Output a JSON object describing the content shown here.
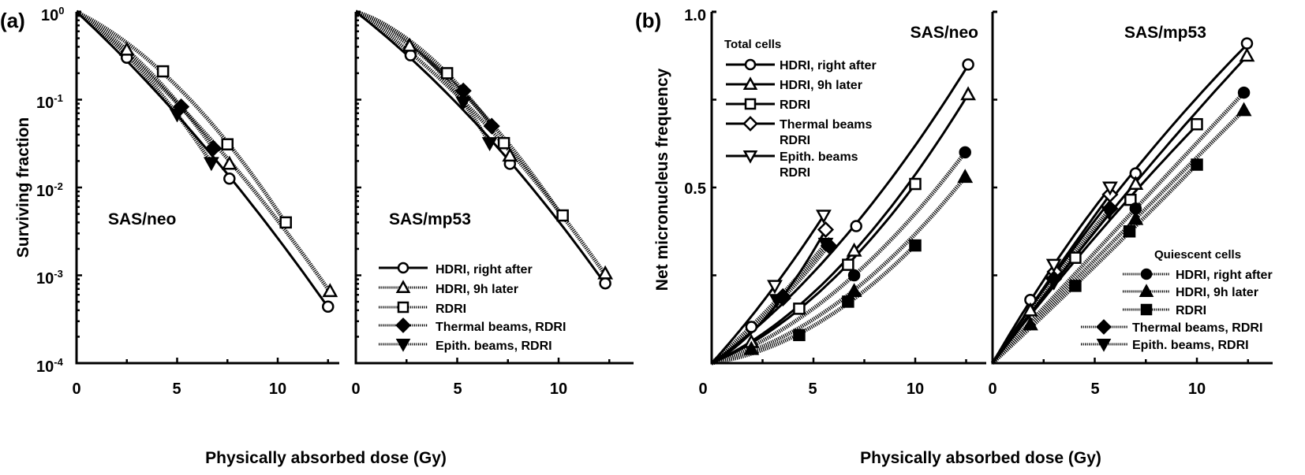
{
  "panel_labels": {
    "a": "(a)",
    "b": "(b)"
  },
  "axis_titles": {
    "a_y": "Surviving fraction",
    "b_y": "Net micronucleus frequency",
    "a_x": "Physically absorbed dose (Gy)",
    "b_x": "Physically absorbed dose (Gy)"
  },
  "tick_labels": {
    "a_y": [
      "10",
      "10",
      "10",
      "10",
      "10"
    ],
    "a_y_exp": [
      "0",
      "-1",
      "-2",
      "-3",
      "-4"
    ],
    "b_y": [
      "1.0",
      "0.5"
    ],
    "x": [
      "0",
      "5",
      "10"
    ]
  },
  "legend_a": {
    "items": [
      "HDRI, right after",
      "HDRI, 9h later",
      "RDRI",
      "Thermal beams, RDRI",
      "Epith. beams, RDRI"
    ]
  },
  "legend_b_total": {
    "title": "Total cells",
    "items": [
      "HDRI, right after",
      "HDRI, 9h later",
      "RDRI",
      "Thermal beams",
      "Epith. beams"
    ],
    "items_line2": [
      "",
      "",
      "",
      "RDRI",
      "RDRI"
    ]
  },
  "legend_b_quiescent": {
    "title": "Quiescent cells",
    "items": [
      "HDRI, right after",
      "HDRI, 9h later",
      "RDRI",
      "Thermal beams, RDRI",
      "Epith. beams, RDRI"
    ]
  },
  "colors": {
    "ink": "#000000",
    "background": "#ffffff"
  },
  "chart_data": [
    {
      "type": "scatter",
      "panel": "a",
      "title": "SAS/neo",
      "xlabel": "Physically absorbed dose (Gy)",
      "ylabel": "Surviving fraction",
      "yscale": "log",
      "ylim": [
        0.0001,
        1
      ],
      "xlim": [
        0,
        13
      ],
      "grid": false,
      "series": [
        {
          "name": "HDRI, right after",
          "marker": "circle",
          "filled": false,
          "line": "solid",
          "points": [
            [
              2.5,
              0.3
            ],
            [
              7.6,
              0.0126
            ],
            [
              12.5,
              0.00044
            ]
          ]
        },
        {
          "name": "HDRI, 9h later",
          "marker": "triangle",
          "filled": false,
          "line": "dotted",
          "points": [
            [
              2.5,
              0.37
            ],
            [
              7.6,
              0.0186
            ],
            [
              12.6,
              0.00066
            ]
          ]
        },
        {
          "name": "RDRI",
          "marker": "square",
          "filled": false,
          "line": "dotted",
          "points": [
            [
              4.3,
              0.21
            ],
            [
              7.5,
              0.031
            ],
            [
              10.4,
              0.004
            ]
          ]
        },
        {
          "name": "Thermal beams, RDRI",
          "marker": "diamond",
          "filled": true,
          "line": "dotted",
          "points": [
            [
              5.2,
              0.083
            ],
            [
              6.8,
              0.028
            ]
          ]
        },
        {
          "name": "Epith. beams, RDRI",
          "marker": "invtriangle",
          "filled": true,
          "line": "dotted",
          "points": [
            [
              5.0,
              0.068
            ],
            [
              6.7,
              0.019
            ]
          ]
        }
      ]
    },
    {
      "type": "scatter",
      "panel": "a",
      "title": "SAS/mp53",
      "yscale": "log",
      "ylim": [
        0.0001,
        1
      ],
      "xlim": [
        0,
        13
      ],
      "grid": false,
      "series": [
        {
          "name": "HDRI, right after",
          "marker": "circle",
          "filled": false,
          "line": "solid",
          "points": [
            [
              2.7,
              0.32
            ],
            [
              7.6,
              0.0186
            ],
            [
              12.3,
              0.00081
            ]
          ]
        },
        {
          "name": "HDRI, 9h later",
          "marker": "triangle",
          "filled": false,
          "line": "dotted",
          "points": [
            [
              2.65,
              0.41
            ],
            [
              7.6,
              0.023
            ],
            [
              12.3,
              0.00105
            ]
          ]
        },
        {
          "name": "RDRI",
          "marker": "square",
          "filled": false,
          "line": "dotted",
          "points": [
            [
              4.5,
              0.2
            ],
            [
              7.3,
              0.032
            ],
            [
              10.2,
              0.0048
            ]
          ]
        },
        {
          "name": "Thermal beams, RDRI",
          "marker": "diamond",
          "filled": true,
          "line": "dotted",
          "points": [
            [
              5.3,
              0.126
            ],
            [
              6.7,
              0.05
            ]
          ]
        },
        {
          "name": "Epith. beams, RDRI",
          "marker": "invtriangle",
          "filled": true,
          "line": "dotted",
          "points": [
            [
              5.3,
              0.093
            ],
            [
              6.6,
              0.032
            ]
          ]
        }
      ]
    },
    {
      "type": "scatter",
      "panel": "b",
      "title": "SAS/neo",
      "xlabel": "Physically absorbed dose (Gy)",
      "ylabel": "Net micronucleus frequency",
      "yscale": "linear",
      "ylim": [
        0,
        1.0
      ],
      "xlim": [
        0,
        13
      ],
      "grid": false,
      "series": [
        {
          "name": "HDRI, right after",
          "group": "Total cells",
          "marker": "circle",
          "filled": false,
          "line": "solid",
          "points": [
            [
              1.95,
              0.103
            ],
            [
              7.1,
              0.39
            ],
            [
              12.6,
              0.85
            ]
          ]
        },
        {
          "name": "HDRI, 9h later",
          "group": "Total cells",
          "marker": "triangle",
          "filled": false,
          "line": "solid",
          "points": [
            [
              1.95,
              0.06
            ],
            [
              7.0,
              0.32
            ],
            [
              12.6,
              0.765
            ]
          ]
        },
        {
          "name": "RDRI",
          "group": "Total cells",
          "marker": "square",
          "filled": false,
          "line": "solid",
          "points": [
            [
              4.3,
              0.155
            ],
            [
              6.7,
              0.28
            ],
            [
              10.0,
              0.51
            ]
          ]
        },
        {
          "name": "Thermal beams RDRI",
          "group": "Total cells",
          "marker": "diamond",
          "filled": false,
          "line": "solid",
          "points": [
            [
              3.5,
              0.19
            ],
            [
              5.6,
              0.38
            ]
          ]
        },
        {
          "name": "Epith. beams RDRI",
          "group": "Total cells",
          "marker": "invtriangle",
          "filled": false,
          "line": "solid",
          "points": [
            [
              3.1,
              0.22
            ],
            [
              5.5,
              0.42
            ]
          ]
        },
        {
          "name": "HDRI, right after",
          "group": "Quiescent cells",
          "marker": "circle",
          "filled": true,
          "line": "dotted",
          "points": [
            [
              7.0,
              0.25
            ],
            [
              12.45,
              0.6
            ]
          ]
        },
        {
          "name": "HDRI, 9h later",
          "group": "Quiescent cells",
          "marker": "triangle",
          "filled": true,
          "line": "dotted",
          "points": [
            [
              1.95,
              0.04
            ],
            [
              7.0,
              0.205
            ],
            [
              12.45,
              0.53
            ]
          ]
        },
        {
          "name": "RDRI",
          "group": "Quiescent cells",
          "marker": "square",
          "filled": true,
          "line": "dotted",
          "points": [
            [
              4.3,
              0.08
            ],
            [
              6.7,
              0.175
            ],
            [
              10.0,
              0.335
            ]
          ]
        },
        {
          "name": "Thermal beams, RDRI",
          "group": "Quiescent cells",
          "marker": "diamond",
          "filled": true,
          "line": "dotted",
          "points": [
            [
              3.5,
              0.185
            ],
            [
              5.75,
              0.335
            ]
          ]
        },
        {
          "name": "Epith. beams, RDRI",
          "group": "Quiescent cells",
          "marker": "invtriangle",
          "filled": true,
          "line": "dotted",
          "points": [
            [
              3.2,
              0.18
            ],
            [
              5.6,
              0.34
            ]
          ]
        }
      ]
    },
    {
      "type": "scatter",
      "panel": "b",
      "title": "SAS/mp53",
      "yscale": "linear",
      "ylim": [
        0,
        1.0
      ],
      "xlim": [
        0,
        13
      ],
      "grid": false,
      "series": [
        {
          "name": "HDRI, right after",
          "group": "Total cells",
          "marker": "circle",
          "filled": false,
          "line": "solid",
          "points": [
            [
              1.85,
              0.18
            ],
            [
              7.0,
              0.54
            ],
            [
              12.45,
              0.91
            ]
          ]
        },
        {
          "name": "HDRI, 9h later",
          "group": "Total cells",
          "marker": "triangle",
          "filled": false,
          "line": "solid",
          "points": [
            [
              1.85,
              0.15
            ],
            [
              7.0,
              0.51
            ],
            [
              12.45,
              0.875
            ]
          ]
        },
        {
          "name": "RDRI",
          "group": "Total cells",
          "marker": "square",
          "filled": false,
          "line": "solid",
          "points": [
            [
              4.05,
              0.3
            ],
            [
              6.75,
              0.465
            ],
            [
              10.0,
              0.68
            ]
          ]
        },
        {
          "name": "Thermal beams RDRI",
          "group": "Total cells",
          "marker": "diamond",
          "filled": false,
          "line": "solid",
          "points": [
            [
              3.05,
              0.26
            ],
            [
              5.75,
              0.48
            ]
          ]
        },
        {
          "name": "Epith. beams RDRI",
          "group": "Total cells",
          "marker": "invtriangle",
          "filled": false,
          "line": "solid",
          "points": [
            [
              3.0,
              0.28
            ],
            [
              5.75,
              0.5
            ]
          ]
        },
        {
          "name": "HDRI, right after",
          "group": "Quiescent cells",
          "marker": "circle",
          "filled": true,
          "line": "dotted",
          "points": [
            [
              7.0,
              0.44
            ],
            [
              12.3,
              0.77
            ]
          ]
        },
        {
          "name": "HDRI, 9h later",
          "group": "Quiescent cells",
          "marker": "triangle",
          "filled": true,
          "line": "dotted",
          "points": [
            [
              1.85,
              0.11
            ],
            [
              7.0,
              0.41
            ],
            [
              12.3,
              0.72
            ]
          ]
        },
        {
          "name": "RDRI",
          "group": "Quiescent cells",
          "marker": "square",
          "filled": true,
          "line": "dotted",
          "points": [
            [
              4.05,
              0.22
            ],
            [
              6.7,
              0.375
            ],
            [
              10.0,
              0.565
            ]
          ]
        },
        {
          "name": "Thermal beams, RDRI",
          "group": "Quiescent cells",
          "marker": "diamond",
          "filled": true,
          "line": "dotted",
          "points": [
            [
              3.0,
              0.24
            ],
            [
              5.75,
              0.44
            ]
          ]
        },
        {
          "name": "Epith. beams, RDRI",
          "group": "Quiescent cells",
          "marker": "invtriangle",
          "filled": true,
          "line": "dotted",
          "points": [
            [
              3.0,
              0.23
            ],
            [
              5.7,
              0.43
            ]
          ]
        }
      ]
    }
  ]
}
